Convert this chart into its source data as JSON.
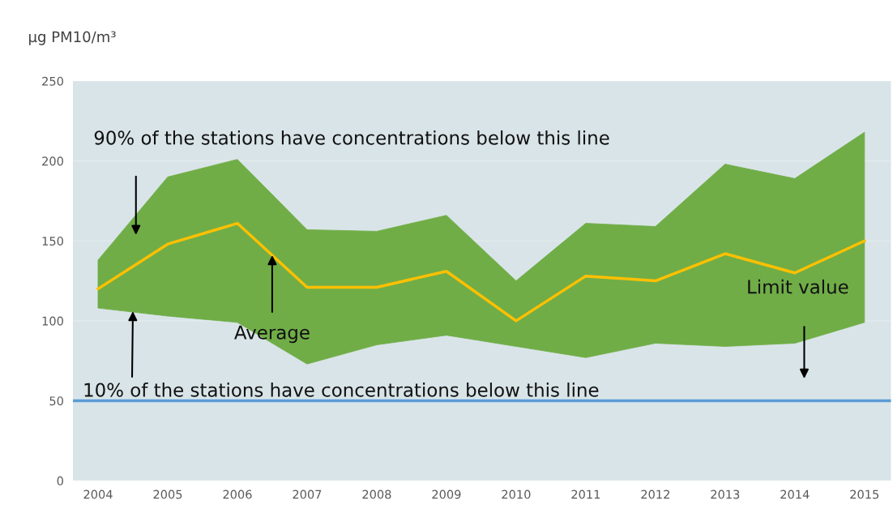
{
  "chart_data": {
    "type": "line",
    "ylabel": "µg PM10/m³",
    "x": [
      2004,
      2005,
      2006,
      2007,
      2008,
      2009,
      2010,
      2011,
      2012,
      2013,
      2014,
      2015
    ],
    "series": [
      {
        "color": "#ffc000",
        "values": [
          120,
          148,
          161,
          121,
          121,
          131,
          100,
          128,
          125,
          142,
          130,
          150
        ],
        "colors": [
          "#70ad47",
          "#70ad47",
          "#70ad47",
          "#70ad47",
          "#70ad47",
          "#70ad47",
          "#70ad47",
          "#70ad47",
          "#70ad47",
          "#70ad47",
          "#70ad47",
          "#70ad47"
        ],
        "lower": [
          108,
          103,
          99,
          73,
          85,
          91,
          84,
          77,
          86,
          84,
          86,
          99
        ],
        "upper": [
          138,
          190,
          201,
          157,
          156,
          166,
          125,
          161,
          159,
          198,
          189,
          218
        ]
      }
    ],
    "xlim": [
      2003.64,
      2015.38
    ],
    "xticks": [
      2004,
      2005,
      2006,
      2007,
      2008,
      2009,
      2010,
      2011,
      2012,
      2013,
      2014,
      2015
    ],
    "ylim": [
      0,
      250
    ],
    "yticks": [
      0,
      50,
      100,
      150,
      200,
      250
    ],
    "grid": "y",
    "ref_lines": [
      {
        "axis": "y",
        "value": 50,
        "color": "#5b9bd5"
      }
    ],
    "annotations": [
      "90% of the stations have concentrations below this line",
      {
        "text": "Average",
        "x": 2006.5,
        "y": 141
      },
      {
        "text": "10% of the stations have concentrations below this line",
        "x": 2004.5,
        "y": 106
      },
      "Limit value"
    ]
  }
}
